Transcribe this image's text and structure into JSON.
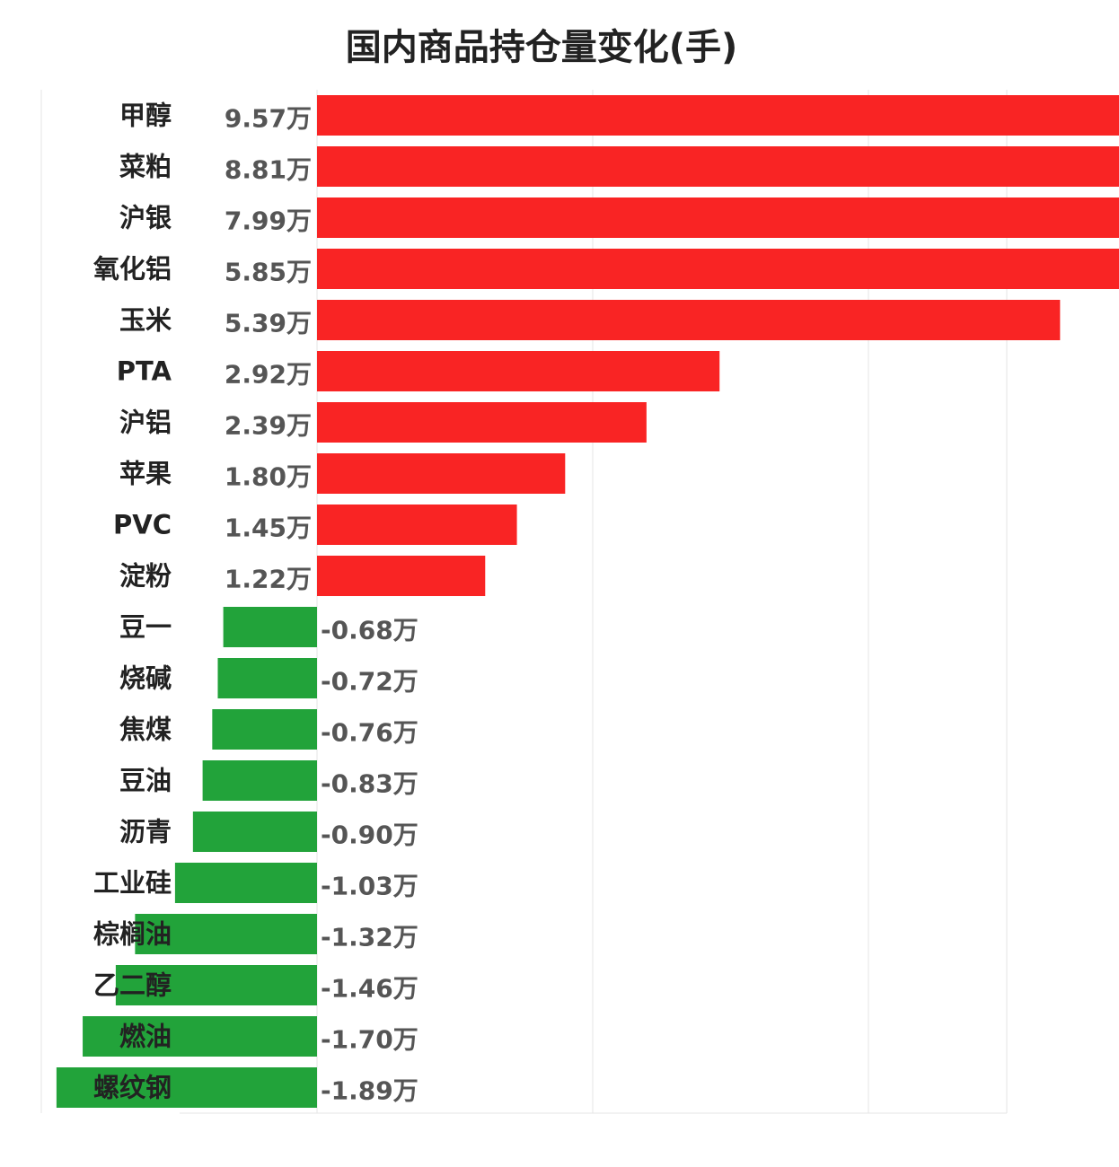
{
  "chart_data": {
    "type": "bar",
    "orientation": "horizontal",
    "title": "国内商品持仓量变化(手)",
    "unit_suffix": "万",
    "categories": [
      "甲醇",
      "菜粕",
      "沪银",
      "氧化铝",
      "玉米",
      "PTA",
      "沪铝",
      "苹果",
      "PVC",
      "淀粉",
      "豆一",
      "烧碱",
      "焦煤",
      "豆油",
      "沥青",
      "工业硅",
      "棕榈油",
      "乙二醇",
      "燃油",
      "螺纹钢"
    ],
    "values": [
      9.57,
      8.81,
      7.99,
      5.85,
      5.39,
      2.92,
      2.39,
      1.8,
      1.45,
      1.22,
      -0.68,
      -0.72,
      -0.76,
      -0.83,
      -0.9,
      -1.03,
      -1.32,
      -1.46,
      -1.7,
      -1.89
    ],
    "value_labels": [
      "9.57万",
      "8.81万",
      "7.99万",
      "5.85万",
      "5.39万",
      "2.92万",
      "2.39万",
      "1.80万",
      "1.45万",
      "1.22万",
      "-0.68万",
      "-0.72万",
      "-0.76万",
      "-0.83万",
      "-0.90万",
      "-1.03万",
      "-1.32万",
      "-1.46万",
      "-1.70万",
      "-1.89万"
    ],
    "xlim": [
      -2,
      10
    ],
    "grid": true,
    "colors": {
      "positive": "#f92424",
      "negative": "#22a33a",
      "grid": "#e6e6e6"
    }
  }
}
